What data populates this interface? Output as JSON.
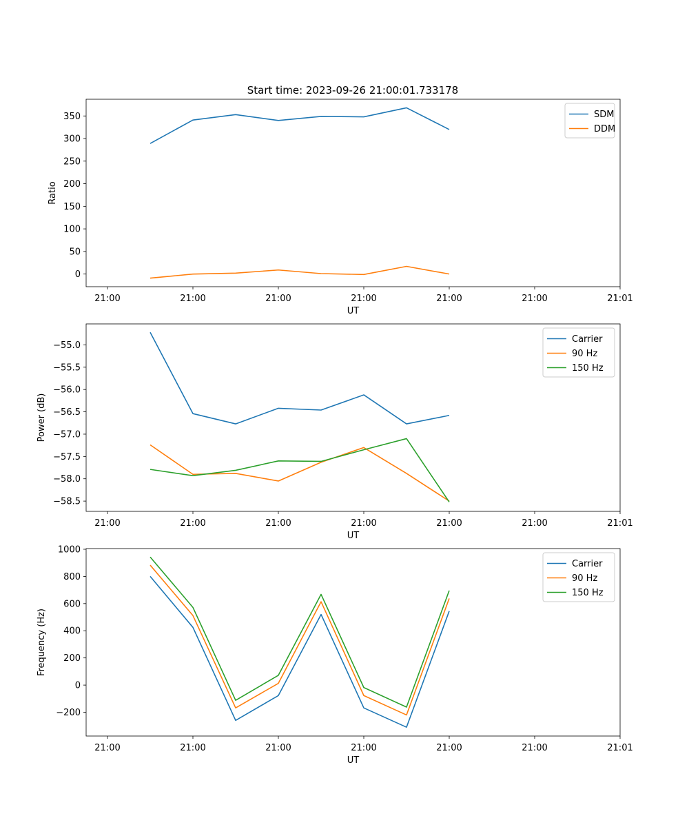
{
  "figure": {
    "title": "Start time: 2023-09-26 21:00:01.733178"
  },
  "chart_data": [
    {
      "type": "line",
      "title": "Start time: 2023-09-26 21:00:01.733178",
      "xlabel": "UT",
      "ylabel": "Ratio",
      "x_ticks": [
        "21:00",
        "21:00",
        "21:00",
        "21:00",
        "21:00",
        "21:00",
        "21:01"
      ],
      "y_ticks": [
        0,
        50,
        100,
        150,
        200,
        250,
        300,
        350
      ],
      "xlim": [
        -0.5,
        12
      ],
      "ylim": [
        -28,
        387
      ],
      "grid": false,
      "legend": "top-right",
      "x": [
        1,
        2,
        3,
        4,
        5,
        6,
        7,
        8
      ],
      "series": [
        {
          "name": "SDM",
          "color": "#1f77b4",
          "values": [
            289,
            341,
            353,
            340,
            349,
            348,
            368,
            320
          ]
        },
        {
          "name": "DDM",
          "color": "#ff7f0e",
          "values": [
            -9,
            0,
            2,
            9,
            1,
            -1,
            17,
            0
          ]
        }
      ]
    },
    {
      "type": "line",
      "title": "",
      "xlabel": "UT",
      "ylabel": "Power (dB)",
      "x_ticks": [
        "21:00",
        "21:00",
        "21:00",
        "21:00",
        "21:00",
        "21:00",
        "21:01"
      ],
      "y_ticks": [
        -55.0,
        -55.5,
        -56.0,
        -56.5,
        -57.0,
        -57.5,
        -58.0,
        -58.5
      ],
      "xlim": [
        -0.5,
        12
      ],
      "ylim": [
        -58.73,
        -54.53
      ],
      "grid": false,
      "legend": "top-right",
      "x": [
        1,
        2,
        3,
        4,
        5,
        6,
        7,
        8
      ],
      "series": [
        {
          "name": "Carrier",
          "color": "#1f77b4",
          "values": [
            -54.72,
            -56.54,
            -56.77,
            -56.42,
            -56.46,
            -56.12,
            -56.77,
            -56.58
          ]
        },
        {
          "name": "90 Hz",
          "color": "#ff7f0e",
          "values": [
            -57.24,
            -57.9,
            -57.88,
            -58.05,
            -57.63,
            -57.3,
            -57.88,
            -58.5
          ]
        },
        {
          "name": "150 Hz",
          "color": "#2ca02c",
          "values": [
            -57.79,
            -57.93,
            -57.81,
            -57.6,
            -57.61,
            -57.35,
            -57.1,
            -58.52
          ]
        }
      ]
    },
    {
      "type": "line",
      "title": "",
      "xlabel": "UT",
      "ylabel": "Frequency (Hz)",
      "x_ticks": [
        "21:00",
        "21:00",
        "21:00",
        "21:00",
        "21:00",
        "21:00",
        "21:01"
      ],
      "y_ticks": [
        -200,
        0,
        200,
        400,
        600,
        800,
        1000
      ],
      "xlim": [
        -0.5,
        12
      ],
      "ylim": [
        -375,
        1005
      ],
      "grid": false,
      "legend": "top-right",
      "x": [
        1,
        2,
        3,
        4,
        5,
        6,
        7,
        8
      ],
      "series": [
        {
          "name": "Carrier",
          "color": "#1f77b4",
          "values": [
            800,
            425,
            -260,
            -77,
            520,
            -168,
            -310,
            545
          ]
        },
        {
          "name": "90 Hz",
          "color": "#ff7f0e",
          "values": [
            883,
            512,
            -168,
            13,
            614,
            -77,
            -220,
            638
          ]
        },
        {
          "name": "150 Hz",
          "color": "#2ca02c",
          "values": [
            943,
            572,
            -112,
            72,
            668,
            -18,
            -162,
            696
          ]
        }
      ]
    }
  ]
}
